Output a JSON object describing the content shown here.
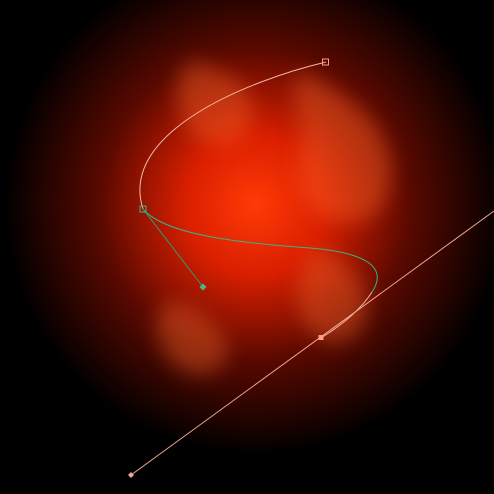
{
  "canvas": {
    "background_color": "#000000",
    "glow_colors": {
      "core": "#ff3a06",
      "mid": "#d91f00",
      "outer": "#5a0900",
      "edge": "#000000",
      "smoke": "#ff6a2a"
    }
  },
  "bezier_tool": {
    "path_color_unselected": "#f3b7a6",
    "path_color_selected": "#39b38a",
    "handle_line_color_active": "#2f9b76",
    "handle_line_color_inactive": "#f0a795",
    "anchor_fill_active": "#47b58e",
    "anchor_fill_inactive": "#ff9f80",
    "anchor_outline": "#2c2c2c",
    "anchors": [
      {
        "name": "anchor-top-right",
        "shape": "square",
        "state": "inactive"
      },
      {
        "name": "anchor-left-middle",
        "shape": "square",
        "state": "selected"
      },
      {
        "name": "anchor-lower-right",
        "shape": "square",
        "state": "inactive"
      }
    ],
    "handles": [
      {
        "name": "handle-green",
        "shape": "diamond",
        "state": "active"
      },
      {
        "name": "handle-bottom-left",
        "shape": "diamond",
        "state": "inactive"
      },
      {
        "name": "handle-upper-right",
        "shape": "line-end",
        "state": "inactive"
      }
    ]
  }
}
